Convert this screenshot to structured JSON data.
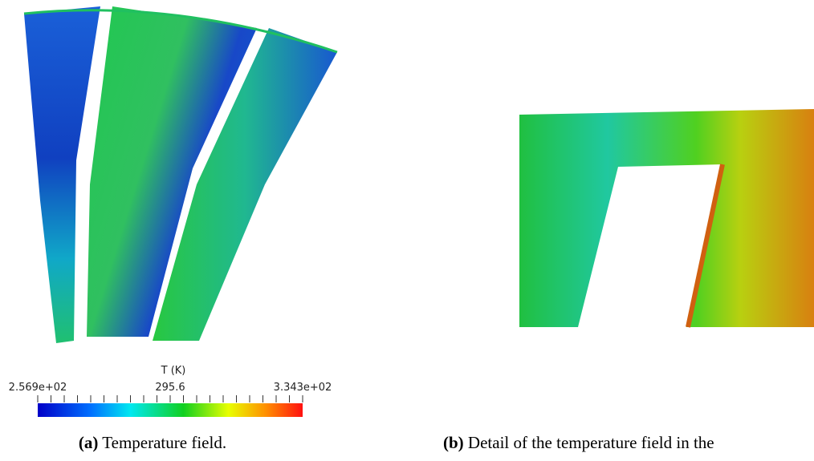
{
  "panels": [
    {
      "colorbar": {
        "title": "T (K)",
        "ticks": [
          "2.569e+02",
          "295.6",
          "3.343e+02"
        ]
      },
      "caption": {
        "label": "(a)",
        "text": "Temperature field."
      }
    },
    {
      "caption": {
        "label": "(b)",
        "text": "Detail of the temperature field in the"
      }
    }
  ]
}
